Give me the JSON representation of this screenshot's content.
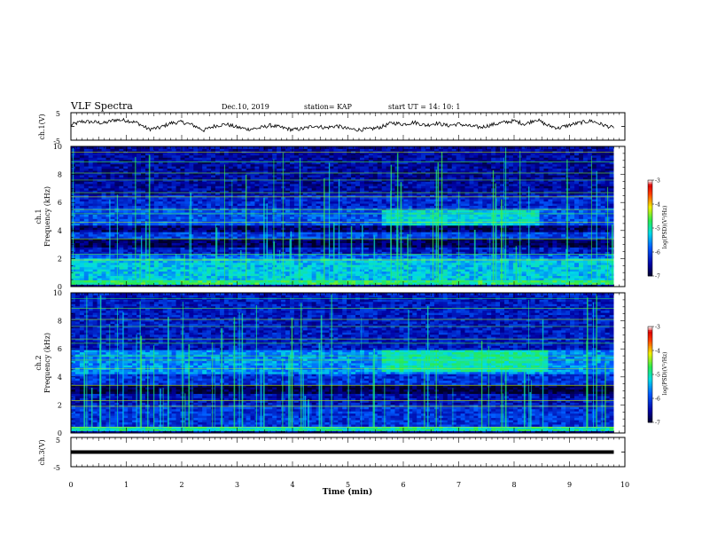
{
  "header": {
    "title": "VLF Spectra",
    "date": "Dec.10, 2019",
    "station": "station= KAP",
    "start": "start  UT =   14: 10: 1"
  },
  "colors": {
    "ink": "#000000",
    "background": "#ffffff"
  },
  "chart_data": [
    {
      "type": "line",
      "name": "ch1-waveform",
      "ylabel": "ch.1(V)",
      "ylim": [
        -5,
        5
      ],
      "yticks": [
        "5",
        "-5"
      ],
      "xlim": [
        0,
        10
      ],
      "x": [
        0,
        0.2,
        0.4,
        0.6,
        0.8,
        1.0,
        1.2,
        1.4,
        1.6,
        1.8,
        2.0,
        2.2,
        2.4,
        2.6,
        2.8,
        3.0,
        3.2,
        3.4,
        3.6,
        3.8,
        4.0,
        4.2,
        4.4,
        4.6,
        4.8,
        5.0,
        5.2,
        5.4,
        5.6,
        5.8,
        6.0,
        6.2,
        6.4,
        6.6,
        6.8,
        7.0,
        7.2,
        7.4,
        7.6,
        7.8,
        8.0,
        8.2,
        8.4,
        8.6,
        8.8,
        9.0,
        9.2,
        9.4,
        9.6,
        9.8
      ],
      "y": [
        0.5,
        1.8,
        1.6,
        1.2,
        2.4,
        2.2,
        1.3,
        -1.0,
        -0.5,
        1.2,
        1.6,
        0.5,
        -1.4,
        0.2,
        0.8,
        -0.3,
        -1.0,
        -0.6,
        0.4,
        -0.4,
        -1.2,
        -0.8,
        0.3,
        -0.5,
        0.2,
        -0.9,
        -1.2,
        -1.0,
        -0.2,
        1.3,
        0.8,
        1.5,
        0.4,
        1.2,
        0.3,
        0.9,
        0.1,
        -0.3,
        0.6,
        1.4,
        2.0,
        0.8,
        2.6,
        0.4,
        -0.6,
        0.5,
        1.4,
        2.0,
        0.6,
        -0.6
      ]
    },
    {
      "type": "heatmap",
      "name": "ch1-spectrogram",
      "ylabel_top": "ch.1",
      "ylabel": "Frequency  (kHz)",
      "ylim": [
        0,
        10
      ],
      "yticks": [
        "0",
        "2",
        "4",
        "6",
        "8",
        "10"
      ],
      "xlim": [
        0,
        10
      ],
      "colorbar_label": "log(PSD)(V²/Hz)",
      "colorbar_range": [
        -7,
        -3
      ],
      "colorbar_ticks": [
        "-3",
        "-4",
        "-5",
        "-6",
        "-7"
      ],
      "bands_khz": [
        {
          "f0": 0.2,
          "f1": 0.5,
          "level": -4.8
        },
        {
          "f0": 0.5,
          "f1": 2.1,
          "level": -5.3
        },
        {
          "f0": 2.1,
          "f1": 2.4,
          "level": -5.8
        },
        {
          "f0": 2.4,
          "f1": 2.8,
          "level": -6.3
        },
        {
          "f0": 2.8,
          "f1": 3.5,
          "level": -6.8
        },
        {
          "f0": 3.5,
          "f1": 3.9,
          "level": -6.0
        },
        {
          "f0": 3.9,
          "f1": 4.4,
          "level": -6.7
        },
        {
          "f0": 4.4,
          "f1": 5.6,
          "level": -5.9
        },
        {
          "f0": 5.6,
          "f1": 6.5,
          "level": -6.2
        },
        {
          "f0": 6.5,
          "f1": 10.0,
          "level": -6.5
        }
      ],
      "emission": {
        "t0": 5.6,
        "t1": 8.4,
        "f0": 4.4,
        "f1": 5.4,
        "level": -5.2
      }
    },
    {
      "type": "heatmap",
      "name": "ch2-spectrogram",
      "ylabel_top": "ch.2",
      "ylabel": "Frequency  (kHz)",
      "ylim": [
        0,
        10
      ],
      "yticks": [
        "0",
        "2",
        "4",
        "6",
        "8",
        "10"
      ],
      "xlim": [
        0,
        10
      ],
      "colorbar_label": "log(PSD)(V²/Hz)",
      "colorbar_range": [
        -7,
        -3
      ],
      "colorbar_ticks": [
        "-3",
        "-4",
        "-5",
        "-6",
        "-7"
      ],
      "bands_khz": [
        {
          "f0": 0.2,
          "f1": 0.5,
          "level": -5.0
        },
        {
          "f0": 0.5,
          "f1": 2.1,
          "level": -6.1
        },
        {
          "f0": 2.1,
          "f1": 2.8,
          "level": -6.4
        },
        {
          "f0": 2.8,
          "f1": 3.4,
          "level": -6.9
        },
        {
          "f0": 3.4,
          "f1": 4.2,
          "level": -6.1
        },
        {
          "f0": 4.2,
          "f1": 6.0,
          "level": -5.6
        },
        {
          "f0": 6.0,
          "f1": 10.0,
          "level": -6.3
        }
      ],
      "emission": {
        "t0": 5.6,
        "t1": 8.6,
        "f0": 4.4,
        "f1": 6.0,
        "level": -5.0
      }
    },
    {
      "type": "line",
      "name": "ch3-waveform",
      "ylabel": "ch.3(V)",
      "ylim": [
        -5,
        5
      ],
      "yticks": [
        "5",
        "-5"
      ],
      "xlim": [
        0,
        10
      ],
      "x": [
        0,
        9.8
      ],
      "y": [
        0,
        0
      ],
      "xlabel": "Time  (min)",
      "xticks": [
        "0",
        "1",
        "2",
        "3",
        "4",
        "5",
        "6",
        "7",
        "8",
        "9",
        "10"
      ]
    }
  ]
}
